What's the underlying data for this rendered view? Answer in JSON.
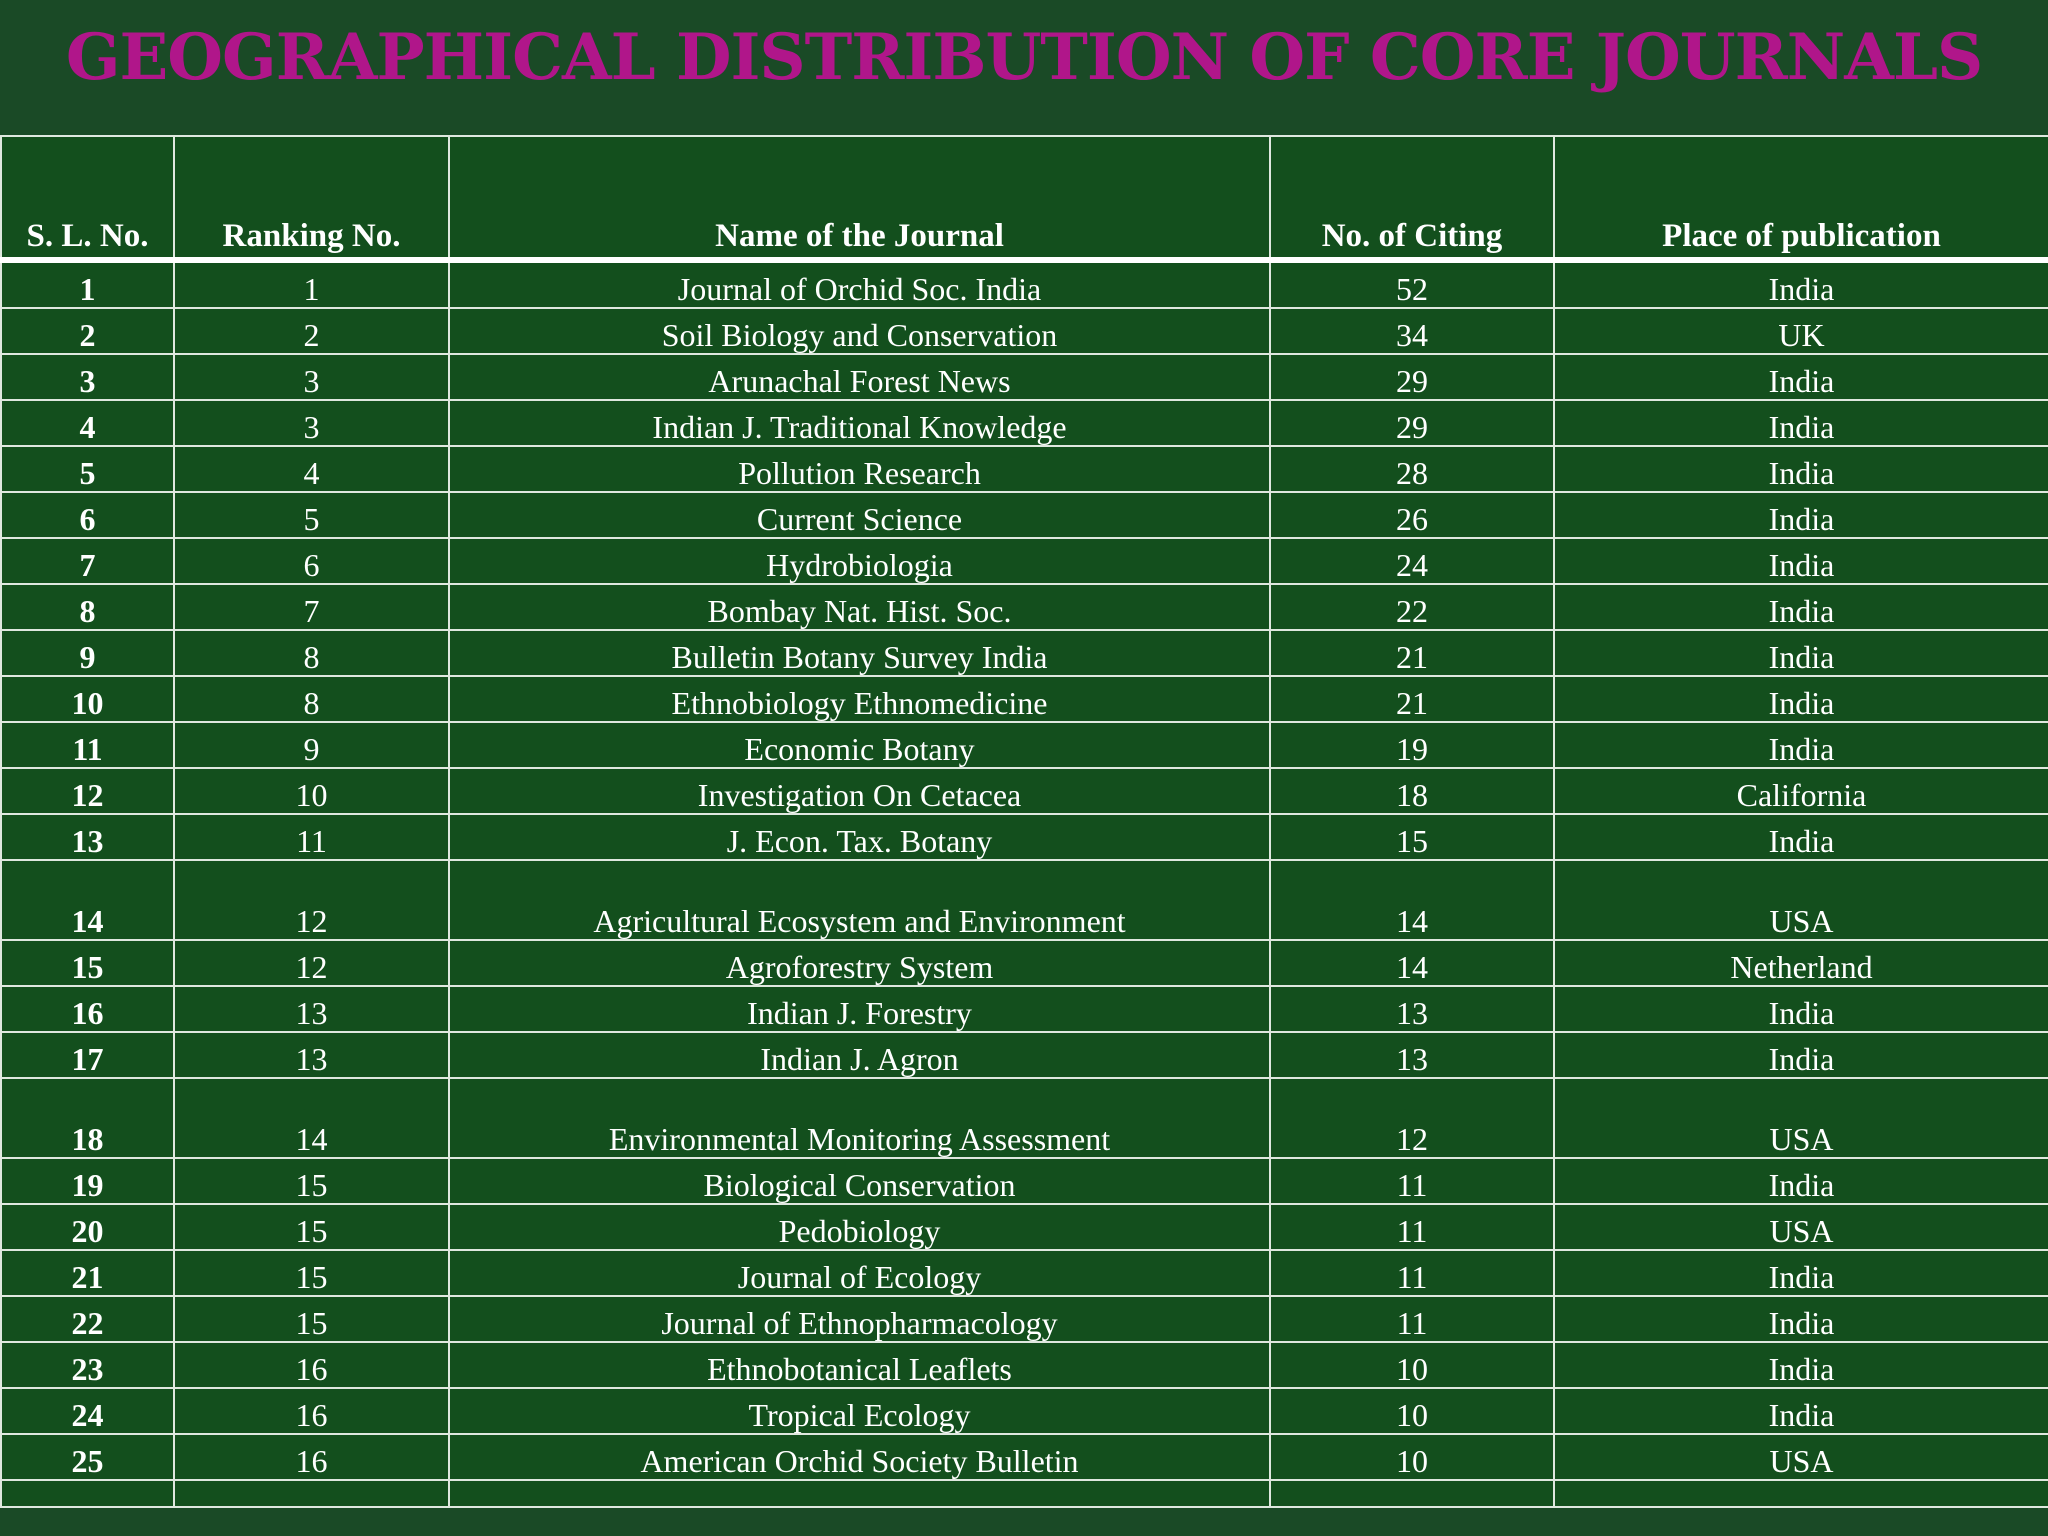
{
  "title": "GEOGRAPHICAL DISTRIBUTION OF CORE JOURNALS",
  "table": {
    "headers": [
      "S. L. No.",
      "Ranking No.",
      "Name of the Journal",
      "No. of Citing",
      "Place of publication"
    ],
    "rows": [
      [
        "1",
        "1",
        "Journal of Orchid Soc. India",
        "52",
        "India"
      ],
      [
        "2",
        "2",
        "Soil Biology and Conservation",
        "34",
        "UK"
      ],
      [
        "3",
        "3",
        "Arunachal Forest News",
        "29",
        "India"
      ],
      [
        "4",
        "3",
        "Indian J. Traditional Knowledge",
        "29",
        "India"
      ],
      [
        "5",
        "4",
        "Pollution Research",
        "28",
        "India"
      ],
      [
        "6",
        "5",
        "Current Science",
        "26",
        "India"
      ],
      [
        "7",
        "6",
        "Hydrobiologia",
        "24",
        "India"
      ],
      [
        "8",
        "7",
        "Bombay Nat. Hist. Soc.",
        "22",
        "India"
      ],
      [
        "9",
        "8",
        "Bulletin Botany Survey India",
        "21",
        "India"
      ],
      [
        "10",
        "8",
        "Ethnobiology Ethnomedicine",
        "21",
        "India"
      ],
      [
        "11",
        "9",
        "Economic Botany",
        "19",
        "India"
      ],
      [
        "12",
        "10",
        "Investigation On Cetacea",
        "18",
        "California"
      ],
      [
        "13",
        "11",
        "J. Econ. Tax. Botany",
        "15",
        "India"
      ],
      [
        "14",
        "12",
        "Agricultural Ecosystem and Environment",
        "14",
        "USA"
      ],
      [
        "15",
        "12",
        "Agroforestry System",
        "14",
        "Netherland"
      ],
      [
        "16",
        "13",
        "Indian J. Forestry",
        "13",
        "India"
      ],
      [
        "17",
        "13",
        "Indian J. Agron",
        "13",
        "India"
      ],
      [
        "18",
        "14",
        "Environmental Monitoring Assessment",
        "12",
        "USA"
      ],
      [
        "19",
        "15",
        "Biological Conservation",
        "11",
        "India"
      ],
      [
        "20",
        "15",
        "Pedobiology",
        "11",
        "USA"
      ],
      [
        "21",
        "15",
        "Journal of Ecology",
        "11",
        "India"
      ],
      [
        "22",
        "15",
        "Journal of Ethnopharmacology",
        "11",
        "India"
      ],
      [
        "23",
        "16",
        "Ethnobotanical Leaflets",
        "10",
        "India"
      ],
      [
        "24",
        "16",
        "Tropical Ecology",
        "10",
        "India"
      ],
      [
        "25",
        "16",
        "American Orchid Society Bulletin",
        "10",
        "USA"
      ]
    ]
  }
}
